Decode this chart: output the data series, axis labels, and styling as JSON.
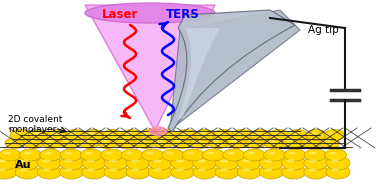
{
  "title": "",
  "background_color": "#ffffff",
  "laser_label": "Laser",
  "ters_label": "TERS",
  "ag_tip_label": "Ag tip",
  "monolayer_label": "2D covalent\nmonolayer",
  "au_label": "Au",
  "laser_color": "#ff0000",
  "ters_color": "#0000ff",
  "cone_fill_color": "#f0a0f0",
  "cone_edge_color": "#cc66cc",
  "tip_fill_color": "#a0a8b8",
  "tip_edge_color": "#606878",
  "au_sphere_color": "#ffd700",
  "au_sphere_edge": "#c8a000",
  "monolayer_color": "#222222",
  "cap_color": "#303030",
  "wire_color": "#181818",
  "hot_spot_color": "#ff88aa",
  "laser_label_color": "#ff0000",
  "ters_label_color": "#0000ee",
  "text_color": "#000000",
  "fig_width": 3.78,
  "fig_height": 1.84
}
